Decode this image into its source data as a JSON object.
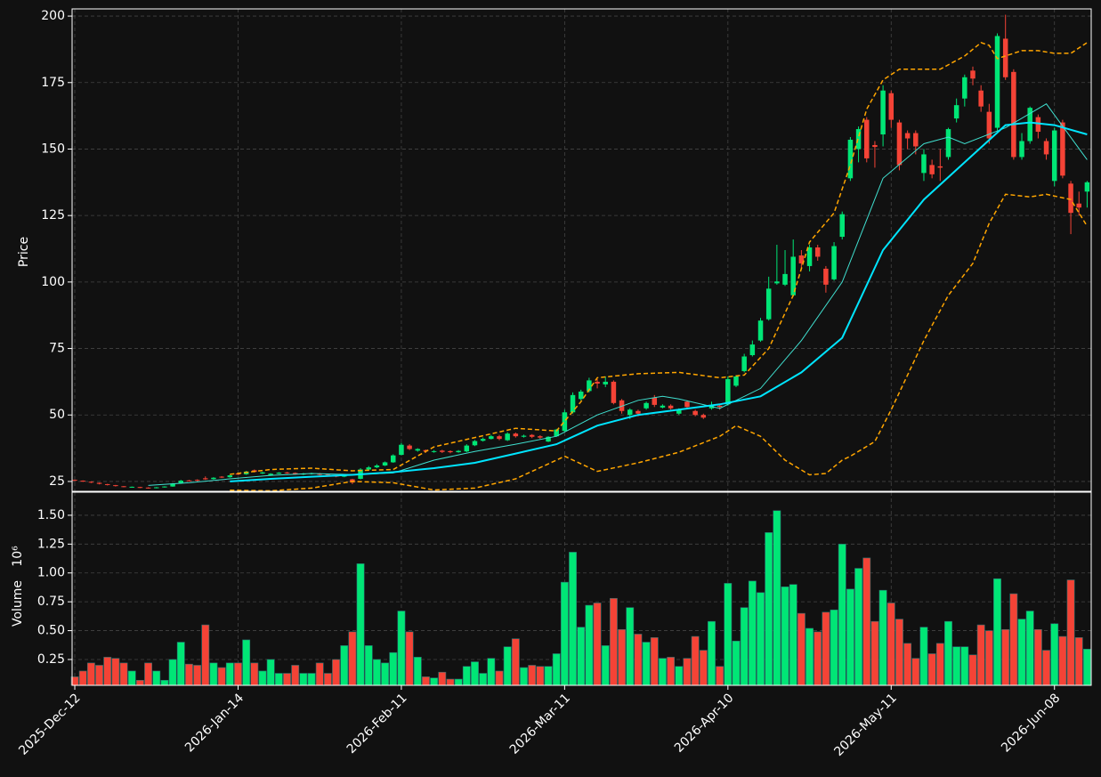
{
  "chart_data": {
    "type": "candlestick",
    "categories": [
      "2025-Dec-12",
      null,
      null,
      null,
      null,
      null,
      null,
      null,
      null,
      null,
      null,
      null,
      null,
      null,
      null,
      null,
      null,
      null,
      null,
      null,
      "2026-Jan-14",
      null,
      null,
      null,
      null,
      null,
      null,
      null,
      null,
      null,
      null,
      null,
      null,
      null,
      null,
      null,
      null,
      null,
      null,
      null,
      "2026-Feb-11",
      null,
      null,
      null,
      null,
      null,
      null,
      null,
      null,
      null,
      null,
      null,
      null,
      null,
      null,
      null,
      null,
      null,
      null,
      null,
      "2026-Mar-11",
      null,
      null,
      null,
      null,
      null,
      null,
      null,
      null,
      null,
      null,
      null,
      null,
      null,
      null,
      null,
      null,
      null,
      null,
      null,
      "2026-Apr-10",
      null,
      null,
      null,
      null,
      null,
      null,
      null,
      null,
      null,
      null,
      null,
      null,
      null,
      null,
      null,
      null,
      null,
      null,
      null,
      "2026-May-11",
      null,
      null,
      null,
      null,
      null,
      null,
      null,
      null,
      null,
      null,
      null,
      null,
      null,
      null,
      null,
      null,
      null,
      null,
      null,
      "2026-Jun-08",
      null,
      null,
      null,
      null
    ],
    "open": [
      25.6,
      25.3,
      24.9,
      24.5,
      24,
      23.6,
      23.2,
      22.8,
      22.9,
      22.7,
      22.5,
      22.8,
      23.1,
      24.3,
      25.4,
      25.6,
      26.2,
      25.9,
      26.8,
      26.6,
      28,
      27.7,
      29.2,
      28,
      27.3,
      27.9,
      28.4,
      28.2,
      27.6,
      27.8,
      28,
      27.6,
      27.3,
      26.8,
      25.8,
      26,
      29.5,
      30.3,
      31,
      32.2,
      35,
      38.5,
      36.6,
      36.8,
      36.1,
      36.6,
      36.4,
      36,
      36.3,
      38.6,
      40.3,
      41,
      42,
      40.5,
      43,
      41.8,
      42.5,
      42,
      40,
      42,
      44,
      51,
      56,
      59,
      62.5,
      61.5,
      62.5,
      55.5,
      50,
      51.5,
      52.5,
      56.5,
      52.8,
      53.5,
      50.5,
      55,
      51.5,
      50,
      52.5,
      53.5,
      54,
      61,
      66.5,
      72.5,
      78,
      86,
      99.5,
      99,
      95,
      110,
      106,
      113,
      105,
      101,
      117,
      139,
      150,
      161,
      151.5,
      155.5,
      171,
      160,
      156,
      156,
      141,
      144,
      143.5,
      147,
      161.5,
      169,
      179.5,
      172,
      164,
      158,
      191.5,
      179,
      147,
      153,
      162,
      153,
      138,
      160,
      137,
      129.5,
      134
    ],
    "high": [
      25.7,
      25.4,
      25,
      24.6,
      24.1,
      23.7,
      23.3,
      23.1,
      23,
      22.8,
      22.9,
      23.2,
      24.4,
      25.6,
      25.6,
      25.8,
      26.9,
      26.6,
      27,
      27.5,
      28.3,
      29,
      29.5,
      28.6,
      28.1,
      28.5,
      28.6,
      28.4,
      28.2,
      28.3,
      28.2,
      27.8,
      27.5,
      27.6,
      26,
      30,
      30.8,
      31.5,
      32.5,
      35.2,
      39.5,
      39,
      37.5,
      37,
      36.8,
      36.9,
      36.7,
      36.8,
      39,
      40.6,
      41.5,
      42.5,
      42.5,
      43.5,
      43.4,
      42.6,
      42.8,
      42.4,
      42,
      44.8,
      52,
      58.5,
      59.5,
      64,
      63.5,
      64.5,
      63,
      56,
      52.5,
      52,
      55,
      57.5,
      54,
      54,
      52.5,
      55.5,
      52,
      50.5,
      55,
      54,
      64.5,
      65,
      73,
      78,
      86.5,
      102,
      114,
      112,
      116,
      112,
      114,
      114,
      106,
      115,
      126.5,
      154.5,
      158.5,
      162,
      153,
      174,
      172,
      161,
      157,
      157,
      150,
      146,
      150,
      158,
      169,
      178,
      181,
      174,
      167,
      193.5,
      200.5,
      180,
      156,
      166,
      163,
      154,
      158,
      161,
      138,
      134,
      138
    ],
    "low": [
      25.2,
      24.8,
      24.4,
      23.9,
      23.5,
      23.1,
      22.8,
      22.7,
      22.5,
      22.3,
      22.4,
      22.7,
      23,
      24.1,
      25,
      25.1,
      25.6,
      25.7,
      26.3,
      26.4,
      27.4,
      27.5,
      28.4,
      27.8,
      27.1,
      27.8,
      27.9,
      27.5,
      27.4,
      27.6,
      27.3,
      27,
      26.6,
      26.6,
      24,
      25.8,
      29.2,
      30,
      30.8,
      32,
      34.8,
      36.8,
      36.2,
      35.8,
      35.8,
      35.7,
      35.6,
      35.8,
      36,
      38.3,
      40,
      40.8,
      40.5,
      40.2,
      41.5,
      41.5,
      41.3,
      41,
      39.8,
      41.8,
      43.5,
      50.5,
      55.5,
      58.5,
      60,
      60.5,
      54,
      50.5,
      48.5,
      49.5,
      52,
      53,
      52.5,
      52,
      50,
      52.5,
      49.5,
      48.5,
      52,
      52,
      53.5,
      60.5,
      66,
      72,
      77.5,
      85.5,
      99,
      98.5,
      94.5,
      105,
      104,
      108,
      96,
      100.5,
      116,
      138,
      145,
      145,
      143,
      151,
      158,
      142,
      150,
      148,
      138,
      139,
      138,
      146,
      160,
      166,
      174,
      164,
      152,
      157,
      176,
      146,
      146,
      152,
      154,
      146,
      136,
      139,
      118,
      125,
      128
    ],
    "close": [
      25.4,
      25,
      24.6,
      24.1,
      23.7,
      23.3,
      23,
      23,
      22.7,
      22.5,
      22.8,
      23.1,
      24.2,
      25.3,
      25.2,
      25.3,
      25.8,
      26.4,
      26.5,
      27.3,
      27.6,
      28.7,
      28.6,
      28.4,
      27.9,
      28.3,
      28.1,
      27.7,
      28,
      28.1,
      27.5,
      27.2,
      26.8,
      27.3,
      24.6,
      29.5,
      30.3,
      31,
      32.2,
      34.8,
      38.8,
      37.2,
      37.2,
      36.3,
      36.4,
      36.1,
      36,
      36.5,
      38.5,
      40.2,
      41,
      42,
      41,
      43,
      42,
      42.2,
      41.8,
      41.5,
      41.8,
      44.5,
      51,
      57.5,
      58.8,
      63,
      61.8,
      62.5,
      54.5,
      51.5,
      52,
      50.5,
      54.5,
      53.8,
      53.5,
      52.5,
      52,
      53,
      50,
      49,
      53.5,
      53,
      63.5,
      64.5,
      72,
      76.5,
      85.5,
      97.5,
      100.2,
      103,
      109.5,
      107,
      113,
      109.5,
      99,
      113.5,
      125.5,
      153.5,
      157.5,
      146.5,
      150.8,
      172,
      161,
      144,
      154,
      151,
      148,
      140.5,
      143,
      157.5,
      166.5,
      177,
      176.5,
      166,
      154,
      192.5,
      177,
      147,
      153,
      165.5,
      156.5,
      148,
      157,
      140,
      126,
      128,
      137.5
    ],
    "up_color": "#00e676",
    "down_color": "#f44336",
    "xlim": [
      -0.33,
      124.5
    ],
    "ylabel": "Price",
    "ylim": [
      21.3,
      202.7
    ],
    "yticks": [
      25,
      50,
      75,
      100,
      125,
      150,
      175,
      200
    ],
    "lines": [
      {
        "color": "#40e0d0",
        "width": 1,
        "x": [
          9,
          14,
          19,
          24,
          29,
          34,
          39,
          44,
          49,
          54,
          59,
          64,
          69,
          72,
          74,
          79,
          84,
          89,
          94,
          99,
          104,
          107,
          109,
          114,
          119,
          124
        ],
        "values": [
          23.5,
          24.5,
          26,
          27.3,
          28,
          27.6,
          28.2,
          33,
          36.3,
          39,
          42,
          50,
          55.5,
          57,
          56,
          52.5,
          60,
          78,
          100,
          139,
          152,
          154.5,
          152,
          158,
          167,
          146
        ]
      },
      {
        "color": "#00e5ff",
        "width": 2,
        "x": [
          19,
          24,
          29,
          34,
          39,
          44,
          49,
          54,
          59,
          64,
          69,
          74,
          79,
          84,
          89,
          94,
          99,
          104,
          109,
          114,
          117,
          120,
          124
        ],
        "values": [
          25,
          26,
          26.8,
          27.5,
          28.5,
          30,
          32,
          35.5,
          39,
          46,
          50,
          52,
          54,
          57,
          66,
          79,
          112,
          131,
          145,
          159,
          160,
          159,
          155.5
        ]
      },
      {
        "color": "#ffa500",
        "width": 1.5,
        "dash": "5,3",
        "x": [
          19,
          24,
          29,
          34,
          39,
          44,
          49,
          54,
          59,
          62,
          64,
          69,
          74,
          79,
          82,
          85,
          88,
          90,
          93,
          95,
          97,
          99,
          101,
          106,
          109,
          111,
          112,
          113,
          116,
          118,
          120,
          122,
          124
        ],
        "values": [
          27.7,
          29.5,
          30,
          29,
          29.5,
          38,
          41.5,
          45,
          44,
          55,
          64,
          65.5,
          66,
          64,
          65,
          75,
          95,
          115,
          126,
          144,
          165,
          176,
          180,
          180,
          185,
          190,
          189,
          184,
          187,
          187,
          186,
          186,
          190
        ]
      },
      {
        "color": "#ffa500",
        "width": 1.5,
        "dash": "5,3",
        "x": [
          19,
          24,
          29,
          34,
          39,
          44,
          49,
          54,
          59,
          60,
          64,
          69,
          74,
          79,
          81,
          84,
          87,
          90,
          92,
          94,
          95,
          98,
          100,
          104,
          107,
          110,
          112,
          114,
          117,
          119,
          122,
          124
        ],
        "values": [
          21.7,
          21.5,
          22.5,
          25,
          24.5,
          21.8,
          22.5,
          26,
          33,
          34.5,
          28.8,
          32,
          36,
          42,
          46,
          42,
          33,
          27.5,
          28,
          33,
          34.5,
          40,
          52,
          78,
          95,
          107,
          122,
          133,
          132,
          133,
          131,
          121
        ]
      }
    ],
    "volume": {
      "ylabel": "Volume",
      "offset_label": "10⁶",
      "ylim": [
        0.026,
        1.7
      ],
      "yticks": [
        0.25,
        {
          "value": 0.5,
          "label": "0.50"
        },
        0.75,
        {
          "value": 1.0,
          "label": "1.00"
        },
        1.25,
        {
          "value": 1.5,
          "label": "1.50"
        }
      ],
      "values": [
        0.1,
        0.15,
        0.22,
        0.2,
        0.27,
        0.26,
        0.22,
        0.15,
        0.07,
        0.22,
        0.15,
        0.07,
        0.25,
        0.4,
        0.21,
        0.2,
        0.55,
        0.22,
        0.18,
        0.22,
        0.22,
        0.42,
        0.22,
        0.15,
        0.25,
        0.13,
        0.13,
        0.2,
        0.13,
        0.13,
        0.22,
        0.13,
        0.25,
        0.37,
        0.49,
        1.08,
        0.37,
        0.25,
        0.22,
        0.31,
        0.67,
        0.49,
        0.27,
        0.1,
        0.09,
        0.14,
        0.08,
        0.08,
        0.19,
        0.23,
        0.13,
        0.26,
        0.15,
        0.36,
        0.43,
        0.18,
        0.2,
        0.19,
        0.19,
        0.3,
        0.92,
        1.18,
        0.53,
        0.72,
        0.74,
        0.37,
        0.78,
        0.51,
        0.7,
        0.47,
        0.4,
        0.44,
        0.26,
        0.27,
        0.19,
        0.26,
        0.45,
        0.33,
        0.58,
        0.19,
        0.91,
        0.41,
        0.7,
        0.93,
        0.83,
        1.35,
        1.54,
        0.88,
        0.9,
        0.65,
        0.52,
        0.49,
        0.66,
        0.68,
        1.25,
        0.86,
        1.04,
        1.13,
        0.58,
        0.85,
        0.74,
        0.6,
        0.39,
        0.26,
        0.53,
        0.3,
        0.39,
        0.58,
        0.36,
        0.36,
        0.29,
        0.55,
        0.5,
        0.95,
        0.51,
        0.82,
        0.6,
        0.67,
        0.51,
        0.33,
        0.56,
        0.45,
        0.94,
        0.44,
        0.34
      ]
    },
    "grid": true
  }
}
